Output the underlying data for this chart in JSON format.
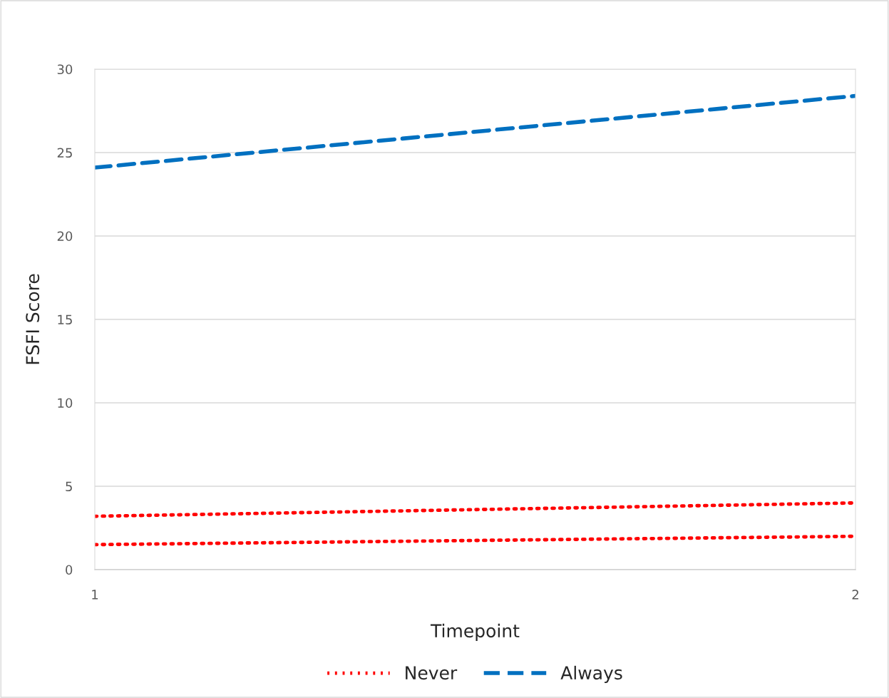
{
  "chart_data": {
    "type": "line",
    "xlabel": "Timepoint",
    "ylabel": "FSFI Score",
    "x": [
      1,
      2
    ],
    "series": [
      {
        "name": "Never",
        "color": "#ff0000",
        "values": [
          3.2,
          4.0
        ],
        "line_style": "dotted"
      },
      {
        "color": "#ff0000",
        "values": [
          1.5,
          2.0
        ],
        "line_style": "dotted"
      },
      {
        "name": "Always",
        "color": "#0070c0",
        "values": [
          24.1,
          28.4
        ],
        "line_style": "dashed"
      }
    ],
    "xlim": [
      1,
      2
    ],
    "xticks": [
      1,
      2
    ],
    "ylim": [
      0,
      30
    ],
    "yticks": [
      0,
      5,
      10,
      15,
      20,
      25,
      30
    ],
    "grid": "y",
    "legend": "bottom",
    "marker": "none"
  }
}
